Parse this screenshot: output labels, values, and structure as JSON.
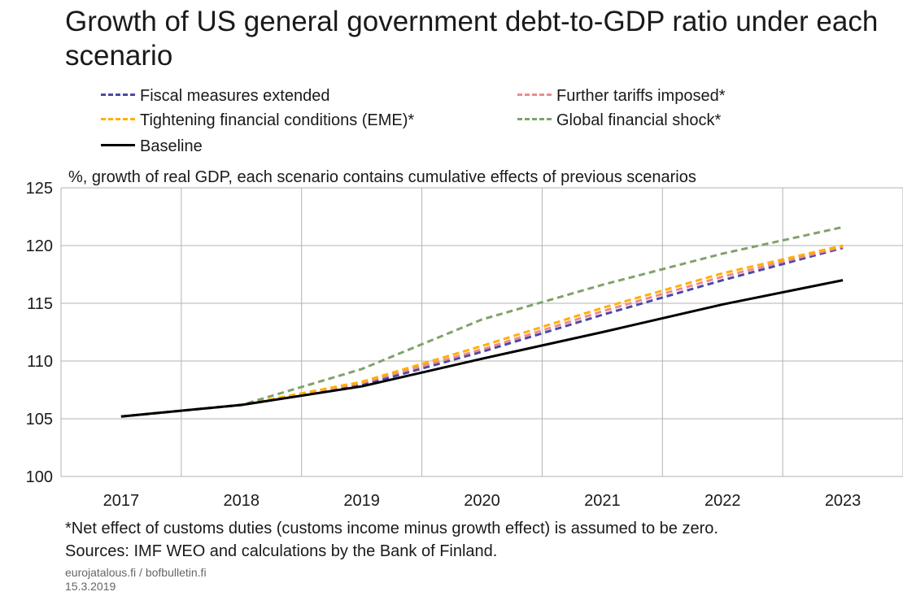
{
  "title": "Growth of US general government debt-to-GDP ratio under each scenario",
  "subtitle": "%, growth of real GDP, each scenario contains cumulative effects of previous scenarios",
  "footnote": "*Net effect of customs duties (customs income minus growth effect) is assumed to be zero.",
  "sources": "Sources: IMF WEO and calculations by the Bank of Finland.",
  "site": "eurojatalous.fi / bofbulletin.fi",
  "date": "15.3.2019",
  "colors": {
    "fiscal": "#4a4aa8",
    "tariffs": "#f08a8a",
    "tightening": "#ffb000",
    "global": "#7fa36a",
    "baseline": "#000000",
    "grid": "#b3b3b3"
  },
  "chart_data": {
    "type": "line",
    "title": "Growth of US general government debt-to-GDP ratio under each scenario",
    "subtitle": "%, growth of real GDP, each scenario contains cumulative effects of previous scenarios",
    "x": [
      "2017",
      "2018",
      "2019",
      "2020",
      "2021",
      "2022",
      "2023"
    ],
    "ylim": [
      100,
      125
    ],
    "yticks": [
      100,
      105,
      110,
      115,
      120,
      125
    ],
    "grid": true,
    "legend_position": "top",
    "series": [
      {
        "name": "Fiscal measures extended",
        "style": "dashed",
        "color": "#4a4aa8",
        "values": [
          105.2,
          106.2,
          107.9,
          110.8,
          114.0,
          117.0,
          119.8
        ]
      },
      {
        "name": "Further tariffs imposed*",
        "style": "dashed",
        "color": "#f08a8a",
        "values": [
          105.2,
          106.2,
          108.1,
          111.0,
          114.3,
          117.3,
          119.9
        ]
      },
      {
        "name": "Tightening financial conditions (EME)*",
        "style": "dashed",
        "color": "#ffb000",
        "values": [
          105.2,
          106.2,
          108.2,
          111.3,
          114.6,
          117.6,
          120.0
        ]
      },
      {
        "name": "Global financial shock*",
        "style": "dashed",
        "color": "#7fa36a",
        "values": [
          105.2,
          106.2,
          109.3,
          113.6,
          116.6,
          119.3,
          121.6
        ]
      },
      {
        "name": "Baseline",
        "style": "solid",
        "color": "#000000",
        "values": [
          105.2,
          106.2,
          107.8,
          110.2,
          112.5,
          114.9,
          117.0
        ]
      }
    ]
  }
}
